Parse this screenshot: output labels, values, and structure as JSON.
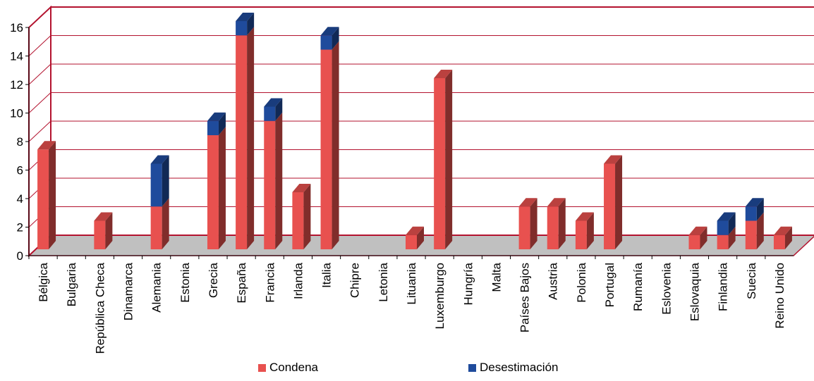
{
  "chart_data": {
    "type": "bar",
    "stacked": true,
    "three_d": true,
    "categories": [
      "Bélgica",
      "Bulgaria",
      "República Checa",
      "Dinamarca",
      "Alemania",
      "Estonia",
      "Grecia",
      "España",
      "Francia",
      "Irlanda",
      "Italia",
      "Chipre",
      "Letonia",
      "Lituania",
      "Luxemburgo",
      "Hungría",
      "Malta",
      "Países Bajos",
      "Austria",
      "Polonia",
      "Portugal",
      "Rumanía",
      "Eslovenia",
      "Eslovaquia",
      "Finlandia",
      "Suecia",
      "Reino Unido"
    ],
    "series": [
      {
        "name": "Condena",
        "color": "#e8514f",
        "values": [
          7,
          0,
          2,
          0,
          3,
          0,
          8,
          15,
          9,
          4,
          14,
          0,
          0,
          1,
          12,
          0,
          0,
          3,
          3,
          2,
          6,
          0,
          0,
          1,
          1,
          2,
          1
        ]
      },
      {
        "name": "Desestimación",
        "color": "#1f4b9c",
        "values": [
          0,
          0,
          0,
          0,
          3,
          0,
          1,
          1,
          1,
          0,
          1,
          0,
          0,
          0,
          0,
          0,
          0,
          0,
          0,
          0,
          0,
          0,
          0,
          0,
          1,
          1,
          0
        ]
      }
    ],
    "yticks": [
      0,
      2,
      4,
      6,
      8,
      10,
      12,
      14,
      16
    ],
    "ylim": [
      0,
      16
    ],
    "grid": true,
    "legend_position": "bottom",
    "title": "",
    "xlabel": "",
    "ylabel": ""
  },
  "colors": {
    "frame": "#b3122e",
    "floor": "#c0c0c0"
  }
}
